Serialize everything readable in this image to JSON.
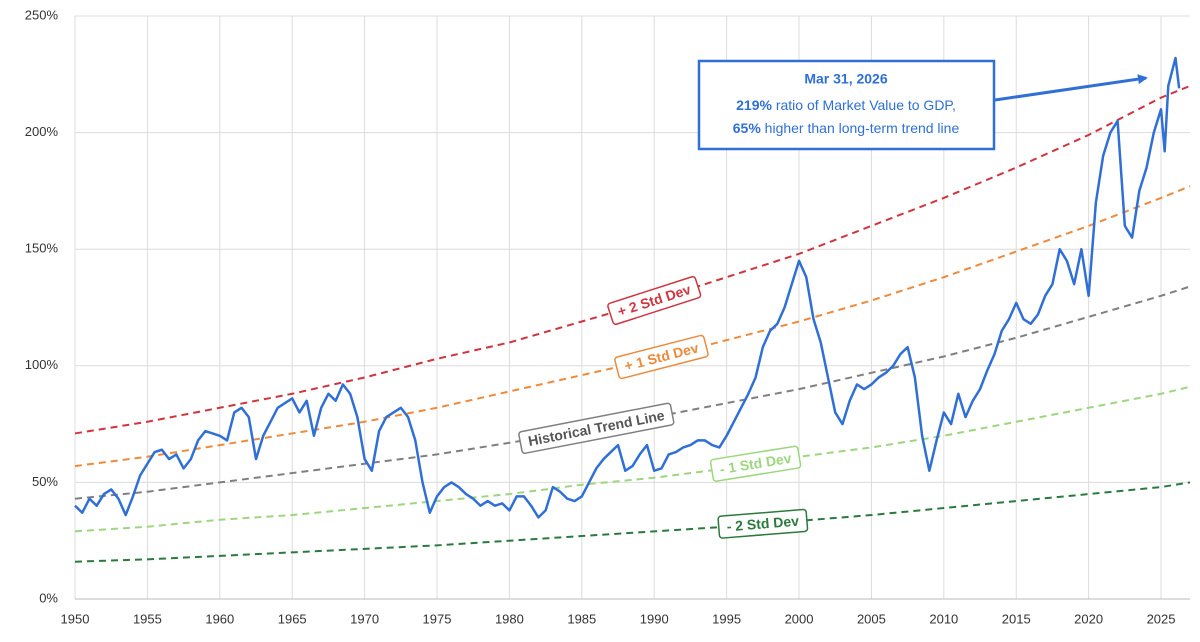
{
  "chart_data": {
    "type": "line",
    "xlim": [
      1950,
      2027
    ],
    "ylim": [
      0,
      250
    ],
    "xticks": [
      1950,
      1955,
      1960,
      1965,
      1970,
      1975,
      1980,
      1985,
      1990,
      1995,
      2000,
      2005,
      2010,
      2015,
      2020,
      2025
    ],
    "yticks": [
      {
        "value": 0,
        "label": "0%"
      },
      {
        "value": 50,
        "label": "50%"
      },
      {
        "value": 100,
        "label": "100%"
      },
      {
        "value": 150,
        "label": "150%"
      },
      {
        "value": 200,
        "label": "200%"
      },
      {
        "value": 250,
        "label": "250%"
      }
    ],
    "grid": true,
    "series": [
      {
        "color": "#2f6fd6",
        "dashed": false,
        "x": [
          1950,
          1950.5,
          1951,
          1951.5,
          1952,
          1952.5,
          1953,
          1953.5,
          1954,
          1954.5,
          1955,
          1955.5,
          1956,
          1956.5,
          1957,
          1957.5,
          1958,
          1958.5,
          1959,
          1959.5,
          1960,
          1960.5,
          1961,
          1961.5,
          1962,
          1962.5,
          1963,
          1963.5,
          1964,
          1964.5,
          1965,
          1965.5,
          1966,
          1966.5,
          1967,
          1967.5,
          1968,
          1968.5,
          1969,
          1969.5,
          1970,
          1970.5,
          1971,
          1971.5,
          1972,
          1972.5,
          1973,
          1973.5,
          1974,
          1974.5,
          1975,
          1975.5,
          1976,
          1976.5,
          1977,
          1977.5,
          1978,
          1978.5,
          1979,
          1979.5,
          1980,
          1980.5,
          1981,
          1981.5,
          1982,
          1982.5,
          1983,
          1983.5,
          1984,
          1984.5,
          1985,
          1985.5,
          1986,
          1986.5,
          1987,
          1987.5,
          1988,
          1988.5,
          1989,
          1989.5,
          1990,
          1990.5,
          1991,
          1991.5,
          1992,
          1992.5,
          1993,
          1993.5,
          1994,
          1994.5,
          1995,
          1995.5,
          1996,
          1996.5,
          1997,
          1997.5,
          1998,
          1998.5,
          1999,
          1999.5,
          2000,
          2000.5,
          2001,
          2001.5,
          2002,
          2002.5,
          2003,
          2003.5,
          2004,
          2004.5,
          2005,
          2005.5,
          2006,
          2006.5,
          2007,
          2007.5,
          2008,
          2008.5,
          2009,
          2009.5,
          2010,
          2010.5,
          2011,
          2011.5,
          2012,
          2012.5,
          2013,
          2013.5,
          2014,
          2014.5,
          2015,
          2015.5,
          2016,
          2016.5,
          2017,
          2017.5,
          2018,
          2018.5,
          2019,
          2019.5,
          2020,
          2020.5,
          2021,
          2021.5,
          2022,
          2022.5,
          2023,
          2023.5,
          2024,
          2024.5,
          2025,
          2025.25,
          2025.5,
          2026,
          2026.25
        ],
        "values": [
          40,
          37,
          43,
          40,
          45,
          47,
          43,
          36,
          44,
          53,
          58,
          63,
          64,
          60,
          62,
          56,
          60,
          68,
          72,
          71,
          70,
          68,
          80,
          82,
          78,
          60,
          70,
          76,
          82,
          84,
          86,
          80,
          85,
          70,
          82,
          88,
          85,
          92,
          88,
          78,
          60,
          55,
          72,
          78,
          80,
          82,
          78,
          68,
          50,
          37,
          44,
          48,
          50,
          48,
          45,
          43,
          40,
          42,
          40,
          41,
          38,
          44,
          44,
          40,
          35,
          38,
          48,
          46,
          43,
          42,
          44,
          50,
          56,
          60,
          63,
          66,
          55,
          57,
          62,
          66,
          55,
          56,
          62,
          63,
          65,
          66,
          68,
          68,
          66,
          65,
          70,
          76,
          82,
          88,
          95,
          108,
          115,
          118,
          125,
          135,
          145,
          138,
          120,
          110,
          95,
          80,
          75,
          85,
          92,
          90,
          92,
          95,
          97,
          100,
          105,
          108,
          95,
          70,
          55,
          68,
          80,
          75,
          88,
          78,
          85,
          90,
          98,
          105,
          115,
          120,
          127,
          120,
          118,
          122,
          130,
          135,
          150,
          145,
          135,
          150,
          130,
          170,
          190,
          200,
          205,
          160,
          155,
          175,
          185,
          200,
          210,
          192,
          220,
          232,
          219
        ]
      },
      {
        "name": "+ 2 Std Dev",
        "color": "#d0343f",
        "dashed": true,
        "x": [
          1950,
          1955,
          1960,
          1965,
          1970,
          1975,
          1980,
          1985,
          1990,
          1995,
          2000,
          2005,
          2010,
          2015,
          2020,
          2025,
          2027
        ],
        "values": [
          71,
          76,
          82,
          88,
          95,
          103,
          110,
          119,
          128,
          138,
          148,
          160,
          172,
          185,
          199,
          215,
          220
        ]
      },
      {
        "name": "+ 1 Std Dev",
        "color": "#ee8a3a",
        "dashed": true,
        "x": [
          1950,
          1955,
          1960,
          1965,
          1970,
          1975,
          1980,
          1985,
          1990,
          1995,
          2000,
          2005,
          2010,
          2015,
          2020,
          2025,
          2027
        ],
        "values": [
          57,
          61,
          66,
          71,
          76,
          82,
          89,
          96,
          103,
          111,
          119,
          128,
          138,
          149,
          160,
          172,
          177
        ]
      },
      {
        "name": "Historical Trend Line",
        "color": "#7f7f7f",
        "dashed": true,
        "x": [
          1950,
          1955,
          1960,
          1965,
          1970,
          1975,
          1980,
          1985,
          1990,
          1995,
          2000,
          2005,
          2010,
          2015,
          2020,
          2025,
          2027
        ],
        "values": [
          43,
          46,
          50,
          54,
          58,
          62,
          67,
          72,
          78,
          84,
          90,
          97,
          104,
          112,
          121,
          130,
          134
        ]
      },
      {
        "name": "- 1 Std Dev",
        "color": "#9dd67f",
        "dashed": true,
        "x": [
          1950,
          1955,
          1960,
          1965,
          1970,
          1975,
          1980,
          1985,
          1990,
          1995,
          2000,
          2005,
          2010,
          2015,
          2020,
          2025,
          2027
        ],
        "values": [
          29,
          31,
          34,
          36,
          39,
          42,
          45,
          49,
          52,
          56,
          61,
          65,
          70,
          76,
          82,
          88,
          91
        ]
      },
      {
        "name": "- 2 Std Dev",
        "color": "#2a7a3e",
        "dashed": true,
        "x": [
          1950,
          1955,
          1960,
          1965,
          1970,
          1975,
          1980,
          1985,
          1990,
          1995,
          2000,
          2005,
          2010,
          2015,
          2020,
          2025,
          2027
        ],
        "values": [
          16,
          17,
          18.5,
          20,
          21.5,
          23,
          25,
          27,
          29,
          31,
          33.5,
          36,
          39,
          42,
          45,
          48,
          50
        ]
      }
    ],
    "annotation": {
      "date": "Mar 31, 2026",
      "lines": [
        {
          "bold": "219%",
          "text": "ratio of Market Value to GDP,"
        },
        {
          "bold": "65%",
          "text": "higher than long-term trend line"
        }
      ]
    }
  }
}
